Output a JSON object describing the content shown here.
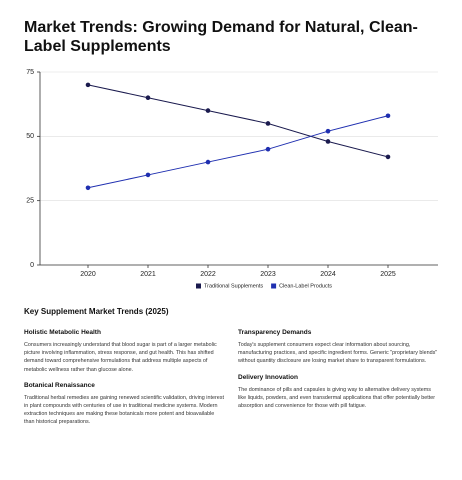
{
  "chart_data": {
    "type": "line",
    "title": "Market Trends: Growing Demand for Natural, Clean-Label Supplements",
    "categories": [
      "2020",
      "2021",
      "2022",
      "2023",
      "2024",
      "2025"
    ],
    "series": [
      {
        "name": "Traditional Supplements",
        "color": "#1a1a4e",
        "values": [
          70,
          65,
          60,
          55,
          48,
          42
        ]
      },
      {
        "name": "Clean-Label Products",
        "color": "#1f2fb0",
        "values": [
          30,
          35,
          40,
          45,
          52,
          58
        ]
      }
    ],
    "ylim": [
      0,
      75
    ],
    "yticks": [
      0,
      25,
      50,
      75
    ],
    "grid": true,
    "legend": "bottom"
  },
  "report": {
    "title": "Key Supplement Market Trends (2025)",
    "sections": [
      {
        "heading": "Holistic Metabolic Health",
        "body": "Consumers increasingly understand that blood sugar is part of a larger metabolic picture involving inflammation, stress response, and gut health. This has shifted demand toward comprehensive formulations that address multiple aspects of metabolic wellness rather than glucose alone."
      },
      {
        "heading": "Botanical Renaissance",
        "body": "Traditional herbal remedies are gaining renewed scientific validation, driving interest in plant compounds with centuries of use in traditional medicine systems. Modern extraction techniques are making these botanicals more potent and bioavailable than historical preparations."
      },
      {
        "heading": "Transparency Demands",
        "body": "Today's supplement consumers expect clear information about sourcing, manufacturing practices, and specific ingredient forms. Generic \"proprietary blends\" without quantity disclosure are losing market share to transparent formulations."
      },
      {
        "heading": "Delivery Innovation",
        "body": "The dominance of pills and capsules is giving way to alternative delivery systems like liquids, powders, and even transdermal applications that offer potentially better absorption and convenience for those with pill fatigue."
      }
    ]
  }
}
